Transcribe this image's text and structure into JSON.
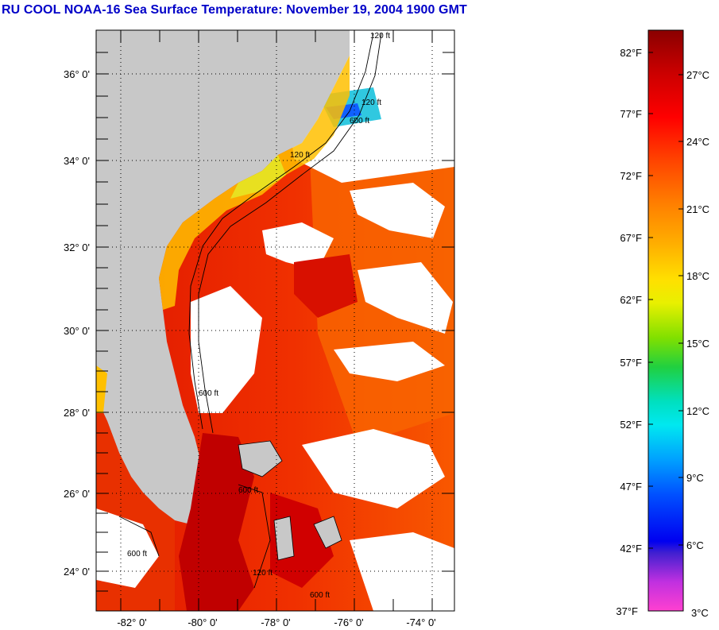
{
  "title": "RU COOL  NOAA-16  Sea Surface Temperature:  November 19, 2004 1900 GMT",
  "map": {
    "lat_labels": [
      "36° 0'",
      "34° 0'",
      "32° 0'",
      "30° 0'",
      "28° 0'",
      "26° 0'",
      "24° 0'"
    ],
    "lon_labels": [
      "-82° 0'",
      "-80° 0'",
      "-78° 0'",
      "-76° 0'",
      "-74° 0'"
    ],
    "contour_labels": [
      "120 ft",
      "120 ft",
      "600 ft",
      "120 ft",
      "600 ft",
      "600 ft",
      "600 ft",
      "600 ft",
      "120 ft"
    ],
    "colors": {
      "land": "#c8c8c8",
      "cloud": "#ffffff",
      "warm_core": "#c80000",
      "gulf_stream": "#e82000",
      "shelf": "#ff7a00",
      "coastal": "#ffd000"
    }
  },
  "colorbar": {
    "fahrenheit_labels": [
      "82°F",
      "77°F",
      "72°F",
      "67°F",
      "62°F",
      "57°F",
      "52°F",
      "47°F",
      "42°F",
      "37°F"
    ],
    "celsius_labels": [
      "27°C",
      "24°C",
      "21°C",
      "18°C",
      "15°C",
      "12°C",
      "9°C",
      "6°C",
      "3°C"
    ],
    "range_f": [
      37,
      84
    ],
    "range_c": [
      3,
      29
    ]
  }
}
